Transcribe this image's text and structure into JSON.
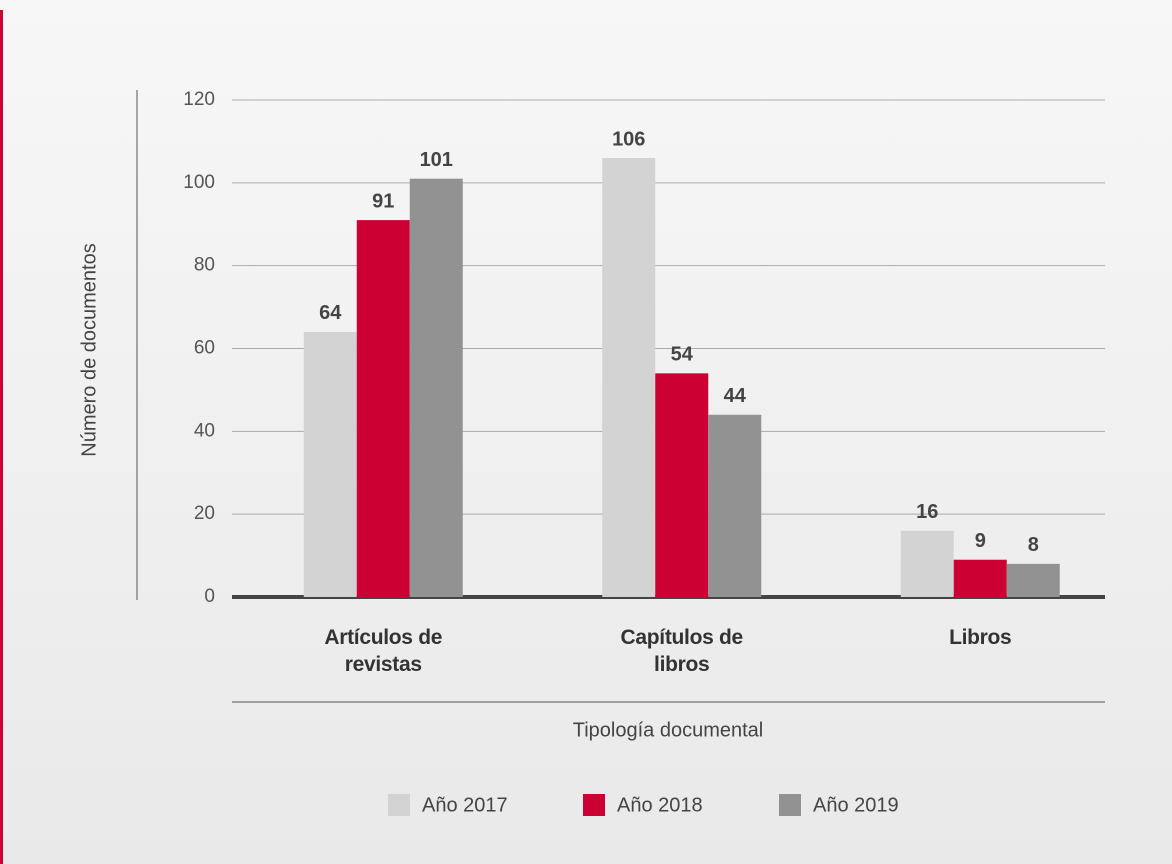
{
  "chart_data": {
    "type": "bar",
    "y_axis_label": "Número de documentos",
    "x_axis_label": "Tipología documental",
    "categories": [
      "Artículos de revistas",
      "Capítulos de libros",
      "Libros"
    ],
    "series": [
      {
        "name": "Año 2017",
        "color": "#d3d3d3",
        "values": [
          64,
          106,
          16
        ]
      },
      {
        "name": "Año 2018",
        "color": "#cc0033",
        "values": [
          91,
          54,
          9
        ]
      },
      {
        "name": "Año 2019",
        "color": "#929292",
        "values": [
          101,
          44,
          8
        ]
      }
    ],
    "ylim": [
      0,
      120
    ],
    "yticks": [
      0,
      20,
      40,
      60,
      80,
      100,
      120
    ],
    "grid": true,
    "legend": "bottom"
  }
}
